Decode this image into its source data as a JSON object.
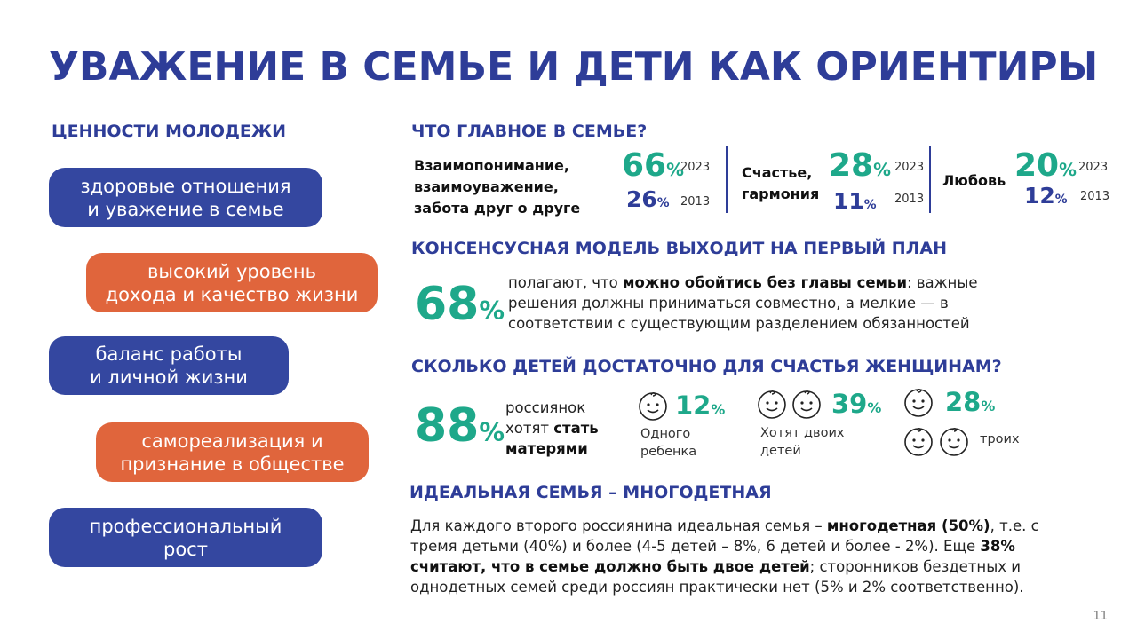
{
  "title": "УВАЖЕНИЕ В СЕМЬЕ И ДЕТИ КАК ОРИЕНТИРЫ",
  "left": {
    "heading": "ЦЕННОСТИ МОЛОДЕЖИ",
    "values": [
      {
        "text": "здоровые отношения\nи уважение в семье",
        "color": "#3447a0"
      },
      {
        "text": "высокий уровень\nдохода и качество жизни",
        "color": "#e0653c"
      },
      {
        "text": "баланс работы\nи личной жизни",
        "color": "#3447a0"
      },
      {
        "text": "самореализация и\nпризнание в обществе",
        "color": "#e0653c"
      },
      {
        "text": "профессиональный\nрост",
        "color": "#3447a0"
      }
    ]
  },
  "family_main": {
    "heading": "ЧТО ГЛАВНОЕ В СЕМЬЕ?",
    "items": [
      {
        "label": "Взаимопонимание,\nвзаимоуважение,\nзабота друг о друге",
        "v2023": "66",
        "v2013": "26",
        "y2023": "2023",
        "y2013": "2013"
      },
      {
        "label": "Счастье,\nгармония",
        "v2023": "28",
        "v2013": "11",
        "y2023": "2023",
        "y2013": "2013"
      },
      {
        "label": "Любовь",
        "v2023": "20",
        "v2013": "12",
        "y2023": "2023",
        "y2013": "2013"
      }
    ],
    "pct_sign": "%"
  },
  "consensus": {
    "heading": "КОНСЕНСУСНАЯ МОДЕЛЬ ВЫХОДИТ НА ПЕРВЫЙ ПЛАН",
    "value": "68",
    "text_before": "полагают, что ",
    "text_bold": "можно обойтись без главы семьи",
    "text_after": ": важные решения должны приниматься совместно, а мелкие — в соответствии с существующим разделением обязанностей"
  },
  "children": {
    "heading": "СКОЛЬКО ДЕТЕЙ ДОСТАТОЧНО ДЛЯ СЧАСТЬЯ ЖЕНЩИНАМ?",
    "mother_value": "88",
    "mother_text_1": "россиянок",
    "mother_text_2": "хотят ",
    "mother_text_bold_1": "стать",
    "mother_text_bold_2": "матерями",
    "one_value": "12",
    "one_label": "Одного\nребенка",
    "two_value": "39",
    "two_label": "Хотят двоих\nдетей",
    "three_value": "28",
    "three_label": "троих"
  },
  "ideal": {
    "heading": "ИДЕАЛЬНАЯ СЕМЬЯ – МНОГОДЕТНАЯ",
    "p1": "Для каждого второго россиянина идеальная семья – ",
    "p1_hl": "многодетная (50%)",
    "p2": ", т.е. с тремя детьми (40%) и более (4-5 детей – 8%, 6 детей и более - 2%). Еще ",
    "p2_hl": "38% считают, что в семье должно быть двое детей",
    "p3": "; сторонников бездетных и однодетных семей среди россиян практически нет (5% и 2% соответственно)."
  },
  "page_number": "11",
  "colors": {
    "navy": "#2e3d98",
    "green": "#1ea88a",
    "orange": "#e0653c",
    "blue": "#3447a0"
  }
}
